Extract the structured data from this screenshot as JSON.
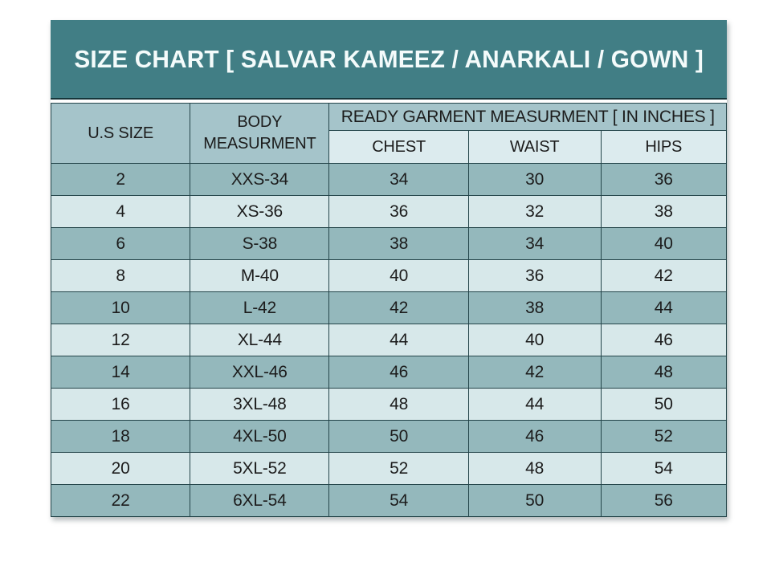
{
  "chart_data": {
    "type": "table",
    "title": "SIZE CHART [ SALVAR KAMEEZ / ANARKALI / GOWN ]",
    "columns": [
      "U.S SIZE",
      "BODY MEASURMENT",
      "CHEST",
      "WAIST",
      "HIPS"
    ],
    "column_group": {
      "label": "READY GARMENT MEASURMENT [ IN INCHES ]",
      "spans": [
        "CHEST",
        "WAIST",
        "HIPS"
      ]
    },
    "rows": [
      [
        "2",
        "XXS-34",
        "34",
        "30",
        "36"
      ],
      [
        "4",
        "XS-36",
        "36",
        "32",
        "38"
      ],
      [
        "6",
        "S-38",
        "38",
        "34",
        "40"
      ],
      [
        "8",
        "M-40",
        "40",
        "36",
        "42"
      ],
      [
        "10",
        "L-42",
        "42",
        "38",
        "44"
      ],
      [
        "12",
        "XL-44",
        "44",
        "40",
        "46"
      ],
      [
        "14",
        "XXL-46",
        "46",
        "42",
        "48"
      ],
      [
        "16",
        "3XL-48",
        "48",
        "44",
        "50"
      ],
      [
        "18",
        "4XL-50",
        "50",
        "46",
        "52"
      ],
      [
        "20",
        "5XL-52",
        "52",
        "48",
        "54"
      ],
      [
        "22",
        "6XL-54",
        "54",
        "50",
        "56"
      ]
    ],
    "layout_hints": {
      "row_striping": "odd rows dark, even rows light",
      "grid": true
    }
  },
  "colors": {
    "banner_bg": "#417e85",
    "banner_text": "#f4fbfb",
    "header_bg": "#a5c4ca",
    "subheader_bg": "#dcebee",
    "row_dark": "#94b8bc",
    "row_light": "#d7e8ea",
    "border": "#24454a",
    "text": "#1c1c1c",
    "page_bg": "#ffffff"
  }
}
